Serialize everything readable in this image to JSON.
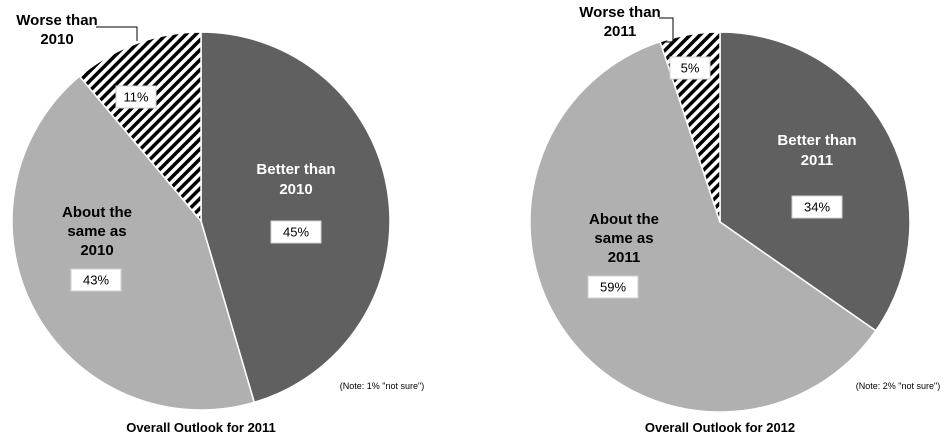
{
  "chart_data": [
    {
      "type": "pie",
      "title": "Overall Outlook for 2011",
      "note": "(Note: 1% \"not sure\")",
      "slices": [
        {
          "label": [
            "Better than",
            "2010"
          ],
          "value": 45,
          "value_label": "45%",
          "color": "#606060",
          "pattern": "solid",
          "label_color": "#ffffff"
        },
        {
          "label": [
            "About the",
            "same as",
            "2010"
          ],
          "value": 43,
          "value_label": "43%",
          "color": "#b0b0b0",
          "pattern": "solid",
          "label_color": "#000000"
        },
        {
          "label": [
            "Worse than",
            "2010"
          ],
          "value": 11,
          "value_label": "11%",
          "color": "#000000",
          "pattern": "hatch",
          "label_color": "#000000"
        }
      ]
    },
    {
      "type": "pie",
      "title": "Overall Outlook for 2012",
      "note": "(Note: 2% \"not sure\")",
      "slices": [
        {
          "label": [
            "Better than",
            "2011"
          ],
          "value": 34,
          "value_label": "34%",
          "color": "#606060",
          "pattern": "solid",
          "label_color": "#ffffff"
        },
        {
          "label": [
            "About the",
            "same as",
            "2011"
          ],
          "value": 59,
          "value_label": "59%",
          "color": "#b0b0b0",
          "pattern": "solid",
          "label_color": "#000000"
        },
        {
          "label": [
            "Worse than",
            "2011"
          ],
          "value": 5,
          "value_label": "5%",
          "color": "#000000",
          "pattern": "hatch",
          "label_color": "#000000"
        }
      ]
    }
  ]
}
